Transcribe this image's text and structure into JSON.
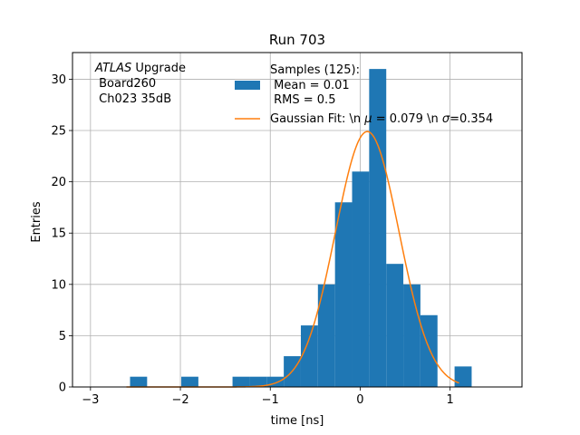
{
  "chart_data": {
    "type": "bar",
    "title": "Run 703",
    "xlabel": "time [ns]",
    "ylabel": "Entries",
    "xlim": [
      -3.2,
      1.8
    ],
    "ylim": [
      0,
      32.6
    ],
    "grid": true,
    "xticks": [
      -3,
      -2,
      -1,
      0,
      1
    ],
    "xtick_labels": [
      "−3",
      "−2",
      "−1",
      "0",
      "1"
    ],
    "yticks": [
      0,
      5,
      10,
      15,
      20,
      25,
      30
    ],
    "ytick_labels": [
      "0",
      "5",
      "10",
      "15",
      "20",
      "25",
      "30"
    ],
    "bin_width": 0.19,
    "histogram": [
      {
        "left": -2.56,
        "count": 1
      },
      {
        "left": -1.99,
        "count": 1
      },
      {
        "left": -1.42,
        "count": 1
      },
      {
        "left": -1.23,
        "count": 1
      },
      {
        "left": -1.04,
        "count": 1
      },
      {
        "left": -0.85,
        "count": 3
      },
      {
        "left": -0.66,
        "count": 6
      },
      {
        "left": -0.47,
        "count": 10
      },
      {
        "left": -0.28,
        "count": 18
      },
      {
        "left": -0.09,
        "count": 21
      },
      {
        "left": 0.1,
        "count": 31
      },
      {
        "left": 0.29,
        "count": 12
      },
      {
        "left": 0.48,
        "count": 10
      },
      {
        "left": 0.67,
        "count": 7
      },
      {
        "left": 1.05,
        "count": 2
      }
    ],
    "fit": {
      "mu": 0.079,
      "sigma": 0.354,
      "amplitude": 24.9,
      "range": [
        -2.6,
        1.1
      ]
    },
    "colors": {
      "histogram": "#1f77b4",
      "fit": "#ff7f0e",
      "grid": "#b0b0b0"
    },
    "legend": {
      "placement": "top-center",
      "entries": [
        {
          "kind": "patch",
          "lines": [
            "Samples (125):",
            " Mean = 0.01",
            " RMS = 0.5"
          ]
        },
        {
          "kind": "line",
          "prefix": "Gaussian Fit: \\n ",
          "mu_symbol": "μ",
          "mu_text": " = 0.079 \\n ",
          "sigma_symbol": "σ",
          "sigma_text": "=0.354"
        }
      ]
    },
    "annotation": {
      "placement": "top-left",
      "italic": "ATLAS",
      "suffix": " Upgrade",
      "lines": [
        " Board260",
        " Ch023 35dB"
      ]
    }
  }
}
